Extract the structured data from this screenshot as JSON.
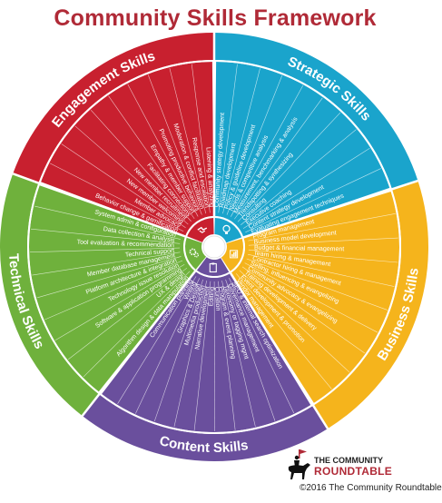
{
  "title": "Community Skills Framework",
  "colors": {
    "strategic": "#1aa4cc",
    "business": "#f5b41c",
    "content": "#6a4f9d",
    "technical": "#6fb13c",
    "engagement": "#c8202f",
    "title": "#b02a37"
  },
  "sections": [
    {
      "name": "Strategic Skills",
      "key": "strategic",
      "icon": "lightbulb-icon",
      "items": [
        "Community strategy development",
        "Roadmap development",
        "Policy & guideline development",
        "Needs & competitive analysis",
        "Measurement, benchmarking & analysis",
        "Trendspotting & synthesizing",
        "Consulting",
        "Executive coaching",
        "Content strategy development",
        "Evaluating engagement techniques"
      ]
    },
    {
      "name": "Business Skills",
      "key": "business",
      "icon": "chart-icon",
      "items": [
        "Program management",
        "Business model development",
        "Budget & financial management",
        "Team hiring & management",
        "Contractor hiring & management",
        "Selling, influencing & evangelizing",
        "Community advocacy & evangelizing",
        "Training development & delivery",
        "Event development & promotion",
        "Vendor management"
      ]
    },
    {
      "name": "Content Skills",
      "key": "content",
      "icon": "clipboard-icon",
      "items": [
        "SEO & internal search optimization",
        "Governance management",
        "Taxonomy or tagging mgmt",
        "Program & event planning",
        "Curation",
        "Editing",
        "Narrative development",
        "Multimedia production",
        "Graphics & Design",
        "Writing",
        "Communication planning"
      ]
    },
    {
      "name": "Technical Skills",
      "key": "technical",
      "icon": "gears-icon",
      "items": [
        "Algorithm design & data manipulation",
        "UX & design",
        "Software & application programming",
        "Technology issue resolution",
        "Platform architecture & integration",
        "Member database management",
        "Technical support",
        "Tool evaluation & recommendation",
        "Data collection & analysis",
        "System admin & configuration"
      ]
    },
    {
      "name": "Engagement Skills",
      "key": "engagement",
      "icon": "handshake-icon",
      "items": [
        "Behavior change & gamification",
        "Member advocacy",
        "New member welcoming",
        "New member recruitment",
        "Facilitating connections",
        "Empathy & member support",
        "Promoting productive behaviors",
        "Moderation & conflict facilitation",
        "Response and escalation",
        "Listening & analyzing"
      ]
    }
  ],
  "footer": {
    "brand_line1": "THE COMMUNITY",
    "brand_line2": "ROUNDTABLE",
    "copyright": "©2016 The Community Roundtable",
    "logo_icon": "horse-rider-icon"
  }
}
